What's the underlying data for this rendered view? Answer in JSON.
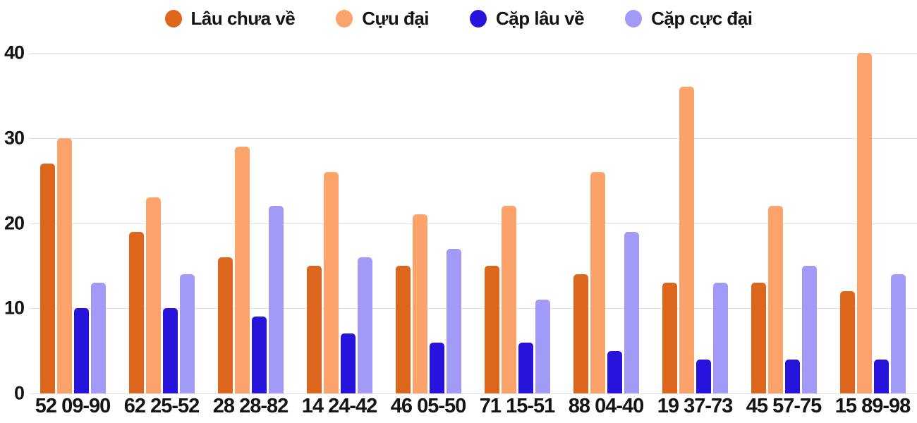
{
  "chart_data": {
    "type": "bar",
    "title": "",
    "xlabel": "",
    "ylabel": "",
    "categories": [
      "52 09-90",
      "62 25-52",
      "28 28-82",
      "14 24-42",
      "46 05-50",
      "71 15-51",
      "88 04-40",
      "19 37-73",
      "45 57-75",
      "15 89-98"
    ],
    "series": [
      {
        "name": "Lâu chưa về",
        "color": "#dc661c",
        "values": [
          27,
          19,
          16,
          15,
          15,
          15,
          14,
          13,
          13,
          12
        ]
      },
      {
        "name": "Cựu đại",
        "color": "#fca36b",
        "values": [
          30,
          23,
          29,
          26,
          21,
          22,
          26,
          36,
          22,
          40
        ]
      },
      {
        "name": "Cặp lâu về",
        "color": "#2713dc",
        "values": [
          10,
          10,
          9,
          7,
          6,
          6,
          5,
          4,
          4,
          4
        ]
      },
      {
        "name": "Cặp cực đại",
        "color": "#a29af7",
        "values": [
          13,
          14,
          22,
          16,
          17,
          11,
          19,
          13,
          15,
          14
        ]
      }
    ],
    "ylim": [
      0,
      40
    ],
    "yticks": [
      0,
      10,
      20,
      30,
      40
    ],
    "grid": true,
    "legend_position": "top",
    "colors": {
      "grid": "#e0e0e0",
      "text": "#141414",
      "background": "#ffffff"
    }
  }
}
